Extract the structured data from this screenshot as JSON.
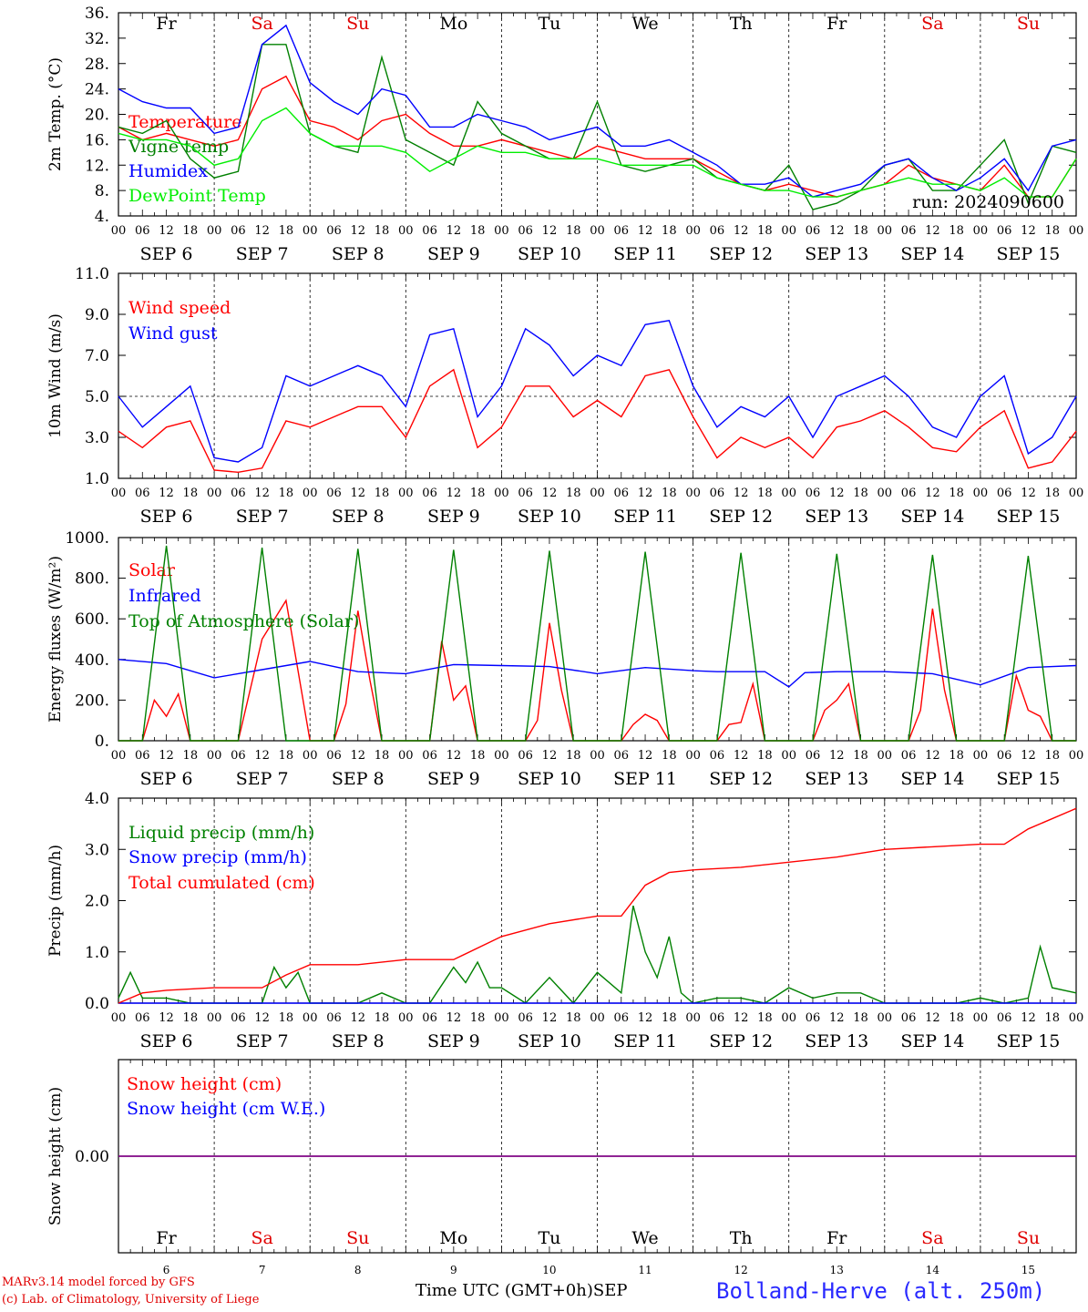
{
  "run_label": "run: 2024090600",
  "station": "Bolland-Herve (alt. 250m)",
  "credits": [
    "MARv3.14 model forced by GFS",
    "(c) Lab. of Climatology, University of Liege"
  ],
  "time_axis_label": "Time UTC (GMT+0h)",
  "month_label": "SEP",
  "hour_ticks": [
    "00",
    "06",
    "12",
    "18"
  ],
  "date_labels": [
    "SEP  6",
    "SEP  7",
    "SEP  8",
    "SEP  9",
    "SEP 10",
    "SEP 11",
    "SEP 12",
    "SEP 13",
    "SEP 14",
    "SEP 15"
  ],
  "day_numbers": [
    "6",
    "7",
    "8",
    "9",
    "10",
    "11",
    "12",
    "13",
    "14",
    "15"
  ],
  "weekdays": [
    {
      "label": "Fr",
      "color": "#000000"
    },
    {
      "label": "Sa",
      "color": "#e00000"
    },
    {
      "label": "Su",
      "color": "#e00000"
    },
    {
      "label": "Mo",
      "color": "#000000"
    },
    {
      "label": "Tu",
      "color": "#000000"
    },
    {
      "label": "We",
      "color": "#000000"
    },
    {
      "label": "Th",
      "color": "#000000"
    },
    {
      "label": "Fr",
      "color": "#000000"
    },
    {
      "label": "Sa",
      "color": "#e00000"
    },
    {
      "label": "Su",
      "color": "#e00000"
    }
  ],
  "chart_data": [
    {
      "type": "line",
      "ylabel": "2m Temp. (°C)",
      "ylim": [
        4,
        36
      ],
      "yticks": [
        "4.",
        "8.",
        "12.",
        "16.",
        "20.",
        "24.",
        "28.",
        "32.",
        "36."
      ],
      "ytick_values": [
        4,
        8,
        12,
        16,
        20,
        24,
        28,
        32,
        36
      ],
      "x_unit": "hours since 2024-09-06 00 UTC",
      "series": [
        {
          "name": "Temperature",
          "color": "#ff0000",
          "x": [
            0,
            6,
            12,
            18,
            24,
            30,
            36,
            42,
            48,
            54,
            60,
            66,
            72,
            78,
            84,
            90,
            96,
            102,
            108,
            114,
            120,
            126,
            132,
            138,
            144,
            150,
            156,
            162,
            168,
            174,
            180,
            186,
            192,
            198,
            204,
            210,
            216,
            222,
            228,
            234,
            240
          ],
          "y": [
            18,
            16,
            17,
            16,
            15,
            16,
            24,
            26,
            19,
            18,
            16,
            19,
            20,
            17,
            15,
            15,
            16,
            15,
            14,
            13,
            15,
            14,
            13,
            13,
            13,
            11,
            9,
            8,
            9,
            8,
            7,
            8,
            9,
            12,
            10,
            9,
            8,
            12,
            7,
            7,
            13
          ]
        },
        {
          "name": "Vigne temp",
          "color": "#008000",
          "x": [
            0,
            6,
            12,
            18,
            24,
            30,
            36,
            42,
            48,
            54,
            60,
            66,
            72,
            78,
            84,
            90,
            96,
            102,
            108,
            114,
            120,
            126,
            132,
            138,
            144,
            150,
            156,
            162,
            168,
            174,
            180,
            186,
            192,
            198,
            204,
            210,
            216,
            222,
            228,
            234,
            240
          ],
          "y": [
            18,
            17,
            19,
            13,
            10,
            11,
            31,
            31,
            17,
            15,
            14,
            29,
            16,
            14,
            12,
            22,
            17,
            15,
            13,
            13,
            22,
            12,
            11,
            12,
            13,
            10,
            9,
            8,
            12,
            5,
            6,
            8,
            12,
            13,
            8,
            8,
            12,
            16,
            6,
            15,
            14
          ]
        },
        {
          "name": "Humidex",
          "color": "#0000ff",
          "x": [
            0,
            6,
            12,
            18,
            24,
            30,
            36,
            42,
            48,
            54,
            60,
            66,
            72,
            78,
            84,
            90,
            96,
            102,
            108,
            114,
            120,
            126,
            132,
            138,
            144,
            150,
            156,
            162,
            168,
            174,
            180,
            186,
            192,
            198,
            204,
            210,
            216,
            222,
            228,
            234,
            240
          ],
          "y": [
            24,
            22,
            21,
            21,
            17,
            18,
            31,
            34,
            25,
            22,
            20,
            24,
            23,
            18,
            18,
            20,
            19,
            18,
            16,
            17,
            18,
            15,
            15,
            16,
            14,
            12,
            9,
            9,
            10,
            7,
            8,
            9,
            12,
            13,
            10,
            8,
            10,
            13,
            8,
            15,
            16
          ]
        },
        {
          "name": "DewPoint Temp",
          "color": "#00ee00",
          "x": [
            0,
            6,
            12,
            18,
            24,
            30,
            36,
            42,
            48,
            54,
            60,
            66,
            72,
            78,
            84,
            90,
            96,
            102,
            108,
            114,
            120,
            126,
            132,
            138,
            144,
            150,
            156,
            162,
            168,
            174,
            180,
            186,
            192,
            198,
            204,
            210,
            216,
            222,
            228,
            234,
            240
          ],
          "y": [
            17,
            16,
            16,
            15,
            12,
            13,
            19,
            21,
            17,
            15,
            15,
            15,
            14,
            11,
            13,
            15,
            14,
            14,
            13,
            13,
            13,
            12,
            12,
            12,
            12,
            10,
            9,
            8,
            8,
            7,
            7,
            8,
            9,
            10,
            9,
            9,
            8,
            10,
            7,
            7,
            13
          ]
        }
      ]
    },
    {
      "type": "line",
      "ylabel": "10m Wind (m/s)",
      "ylim": [
        1,
        11
      ],
      "yticks": [
        "1.0",
        "3.0",
        "5.0",
        "7.0",
        "9.0",
        "11.0"
      ],
      "ytick_values": [
        1,
        3,
        5,
        7,
        9,
        11
      ],
      "hline": 5,
      "series": [
        {
          "name": "Wind speed",
          "color": "#ff0000",
          "x": [
            0,
            6,
            12,
            18,
            24,
            30,
            36,
            42,
            48,
            54,
            60,
            66,
            72,
            78,
            84,
            90,
            96,
            102,
            108,
            114,
            120,
            126,
            132,
            138,
            144,
            150,
            156,
            162,
            168,
            174,
            180,
            186,
            192,
            198,
            204,
            210,
            216,
            222,
            228,
            234,
            240
          ],
          "y": [
            3.3,
            2.5,
            3.5,
            3.8,
            1.4,
            1.3,
            1.5,
            3.8,
            3.5,
            4.0,
            4.5,
            4.5,
            3.0,
            5.5,
            6.3,
            2.5,
            3.5,
            5.5,
            5.5,
            4.0,
            4.8,
            4.0,
            6.0,
            6.3,
            4.0,
            2.0,
            3.0,
            2.5,
            3.0,
            2.0,
            3.5,
            3.8,
            4.3,
            3.5,
            2.5,
            2.3,
            3.5,
            4.3,
            1.5,
            1.8,
            3.3
          ]
        },
        {
          "name": "Wind gust",
          "color": "#0000ff",
          "x": [
            0,
            6,
            12,
            18,
            24,
            30,
            36,
            42,
            48,
            54,
            60,
            66,
            72,
            78,
            84,
            90,
            96,
            102,
            108,
            114,
            120,
            126,
            132,
            138,
            144,
            150,
            156,
            162,
            168,
            174,
            180,
            186,
            192,
            198,
            204,
            210,
            216,
            222,
            228,
            234,
            240
          ],
          "y": [
            5.0,
            3.5,
            4.5,
            5.5,
            2.0,
            1.8,
            2.5,
            6.0,
            5.5,
            6.0,
            6.5,
            6.0,
            4.5,
            8.0,
            8.3,
            4.0,
            5.5,
            8.3,
            7.5,
            6.0,
            7.0,
            6.5,
            8.5,
            8.7,
            5.5,
            3.5,
            4.5,
            4.0,
            5.0,
            3.0,
            5.0,
            5.5,
            6.0,
            5.0,
            3.5,
            3.0,
            5.0,
            6.0,
            2.2,
            3.0,
            5.0
          ]
        }
      ]
    },
    {
      "type": "line",
      "ylabel": "Energy fluxes (W/m²)",
      "ylim": [
        0,
        1000
      ],
      "yticks": [
        "0.",
        "200.",
        "400.",
        "600.",
        "800.",
        "1000."
      ],
      "ytick_values": [
        0,
        200,
        400,
        600,
        800,
        1000
      ],
      "series": [
        {
          "name": "Solar",
          "color": "#ff0000",
          "x": [
            0,
            6,
            9,
            12,
            15,
            18,
            24,
            30,
            36,
            42,
            48,
            54,
            57,
            60,
            63,
            66,
            72,
            78,
            81,
            84,
            87,
            90,
            96,
            102,
            105,
            108,
            111,
            114,
            120,
            126,
            129,
            132,
            135,
            138,
            144,
            150,
            153,
            156,
            159,
            162,
            168,
            174,
            177,
            180,
            183,
            186,
            192,
            198,
            201,
            204,
            207,
            210,
            216,
            222,
            225,
            228,
            231,
            234,
            240
          ],
          "y": [
            0,
            0,
            200,
            120,
            230,
            0,
            0,
            0,
            500,
            690,
            0,
            0,
            180,
            640,
            300,
            0,
            0,
            0,
            490,
            200,
            270,
            0,
            0,
            0,
            100,
            580,
            250,
            0,
            0,
            0,
            80,
            130,
            100,
            0,
            0,
            0,
            80,
            90,
            280,
            0,
            0,
            0,
            150,
            200,
            280,
            0,
            0,
            0,
            150,
            650,
            250,
            0,
            0,
            0,
            320,
            150,
            120,
            0,
            0
          ]
        },
        {
          "name": "Infrared",
          "color": "#0000ff",
          "x": [
            0,
            12,
            24,
            36,
            48,
            60,
            72,
            84,
            96,
            108,
            120,
            132,
            144,
            150,
            156,
            162,
            168,
            172,
            180,
            192,
            204,
            216,
            228,
            240
          ],
          "y": [
            400,
            380,
            310,
            350,
            390,
            340,
            330,
            375,
            370,
            365,
            330,
            360,
            345,
            340,
            340,
            340,
            265,
            335,
            340,
            340,
            330,
            275,
            360,
            370
          ]
        },
        {
          "name": "Top of Atmosphere (Solar)",
          "color": "#008000",
          "x": [
            0,
            6,
            12,
            18,
            24,
            30,
            36,
            42,
            48,
            54,
            60,
            66,
            72,
            78,
            84,
            90,
            96,
            102,
            108,
            114,
            120,
            126,
            132,
            138,
            144,
            150,
            156,
            162,
            168,
            174,
            180,
            186,
            192,
            198,
            204,
            210,
            216,
            222,
            228,
            234,
            240
          ],
          "y": [
            0,
            0,
            960,
            0,
            0,
            0,
            950,
            0,
            0,
            0,
            945,
            0,
            0,
            0,
            940,
            0,
            0,
            0,
            935,
            0,
            0,
            0,
            930,
            0,
            0,
            0,
            925,
            0,
            0,
            0,
            920,
            0,
            0,
            0,
            915,
            0,
            0,
            0,
            910,
            0,
            0
          ]
        }
      ]
    },
    {
      "type": "line",
      "ylabel": "Precip (mm/h)",
      "ylim": [
        0,
        4
      ],
      "yticks": [
        "0.0",
        "1.0",
        "2.0",
        "3.0",
        "4.0"
      ],
      "ytick_values": [
        0,
        1,
        2,
        3,
        4
      ],
      "series": [
        {
          "name": "Liquid precip (mm/h)",
          "color": "#008000",
          "x": [
            0,
            3,
            6,
            12,
            18,
            24,
            30,
            36,
            39,
            42,
            45,
            48,
            54,
            60,
            66,
            72,
            78,
            84,
            87,
            90,
            93,
            96,
            102,
            108,
            114,
            120,
            126,
            129,
            132,
            135,
            138,
            141,
            144,
            150,
            156,
            162,
            168,
            174,
            180,
            186,
            192,
            198,
            204,
            210,
            216,
            222,
            228,
            231,
            234,
            240
          ],
          "y": [
            0.1,
            0.6,
            0.1,
            0.1,
            0,
            0,
            0,
            0,
            0.7,
            0.3,
            0.6,
            0,
            0,
            0,
            0.2,
            0,
            0,
            0.7,
            0.4,
            0.8,
            0.3,
            0.3,
            0,
            0.5,
            0,
            0.6,
            0.2,
            1.9,
            1.0,
            0.5,
            1.3,
            0.2,
            0,
            0.1,
            0.1,
            0,
            0.3,
            0.1,
            0.2,
            0.2,
            0,
            0,
            0,
            0,
            0.1,
            0,
            0.1,
            1.1,
            0.3,
            0.2
          ]
        },
        {
          "name": "Snow precip (mm/h)",
          "color": "#0000ff",
          "x": [
            0,
            240
          ],
          "y": [
            0,
            0
          ]
        },
        {
          "name": "Total cumulated (cm)",
          "color": "#ff0000",
          "x": [
            0,
            6,
            12,
            24,
            36,
            42,
            48,
            60,
            72,
            84,
            96,
            108,
            120,
            126,
            132,
            138,
            144,
            156,
            168,
            180,
            192,
            204,
            216,
            222,
            228,
            240
          ],
          "y": [
            0,
            0.2,
            0.25,
            0.3,
            0.3,
            0.55,
            0.75,
            0.75,
            0.85,
            0.85,
            1.3,
            1.55,
            1.7,
            1.7,
            2.3,
            2.55,
            2.6,
            2.65,
            2.75,
            2.85,
            3.0,
            3.05,
            3.1,
            3.1,
            3.4,
            3.8
          ]
        }
      ]
    },
    {
      "type": "line",
      "ylabel": "Snow height (cm)",
      "ylim": [
        -1,
        1
      ],
      "yticks": [
        "0.00"
      ],
      "ytick_values": [
        0
      ],
      "series": [
        {
          "name": "Snow height (cm)",
          "color": "#ff0000",
          "x": [
            0,
            240
          ],
          "y": [
            0,
            0
          ]
        },
        {
          "name": "Snow height (cm W.E.)",
          "color": "#0000ff",
          "x": [
            0,
            240
          ],
          "y": [
            0,
            0
          ]
        }
      ]
    }
  ]
}
